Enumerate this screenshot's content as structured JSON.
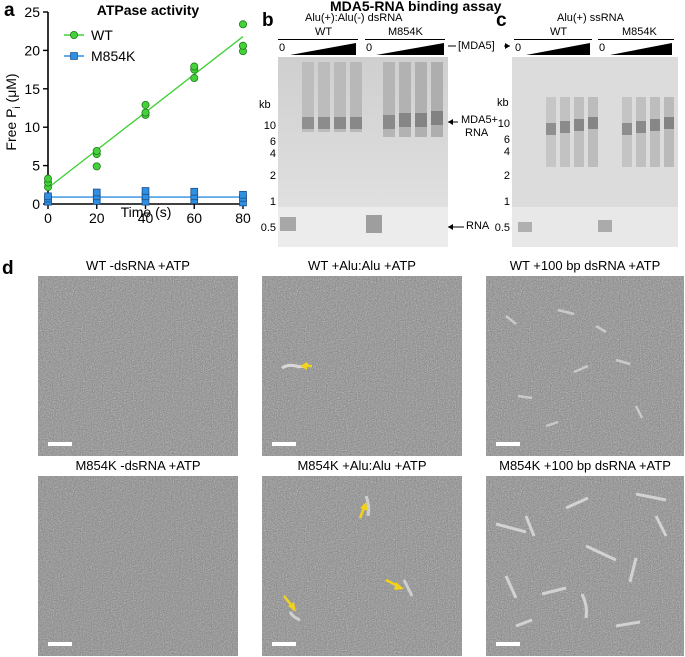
{
  "panels": {
    "a": {
      "letter": "a",
      "chart_data": {
        "type": "scatter",
        "title": "ATPase activity",
        "xlabel": "Time (s)",
        "ylabel": "Free Pi (μM)",
        "ylabel_parts": [
          "Free P",
          "i",
          " (μM)"
        ],
        "xlim": [
          0,
          80
        ],
        "ylim": [
          0,
          25
        ],
        "xticks": [
          0,
          20,
          40,
          60,
          80
        ],
        "yticks": [
          0,
          5,
          10,
          15,
          20,
          25
        ],
        "legend_position": "top-left",
        "series": [
          {
            "name": "WT",
            "color": "#44d13a",
            "marker": "circle",
            "points": [
              [
                0,
                2.2
              ],
              [
                0,
                2.8
              ],
              [
                0,
                3.3
              ],
              [
                20,
                4.9
              ],
              [
                20,
                6.5
              ],
              [
                20,
                6.9
              ],
              [
                40,
                11.6
              ],
              [
                40,
                11.9
              ],
              [
                40,
                12.9
              ],
              [
                60,
                16.4
              ],
              [
                60,
                17.5
              ],
              [
                60,
                17.9
              ],
              [
                80,
                19.9
              ],
              [
                80,
                20.6
              ],
              [
                80,
                23.4
              ]
            ],
            "fit": [
              [
                0,
                2.1
              ],
              [
                80,
                21.8
              ]
            ]
          },
          {
            "name": "M854K",
            "color": "#2f8fe0",
            "marker": "square",
            "points": [
              [
                0,
                0.3
              ],
              [
                0,
                0.7
              ],
              [
                0,
                1.0
              ],
              [
                20,
                0.4
              ],
              [
                20,
                1.0
              ],
              [
                20,
                1.5
              ],
              [
                40,
                0.3
              ],
              [
                40,
                1.0
              ],
              [
                40,
                1.7
              ],
              [
                60,
                0.5
              ],
              [
                60,
                1.0
              ],
              [
                60,
                1.6
              ],
              [
                80,
                0.2
              ],
              [
                80,
                0.8
              ],
              [
                80,
                1.2
              ]
            ],
            "fit": [
              [
                0,
                0.9
              ],
              [
                80,
                0.9
              ]
            ]
          }
        ]
      }
    },
    "b": {
      "letter": "b",
      "assay_title": "MDA5-RNA binding assay",
      "subtitle": "Alu(+):Alu(-) dsRNA",
      "group_labels": [
        "WT",
        "M854K"
      ],
      "zero_label": "0",
      "kb_label": "kb",
      "kb_markers": [
        "10",
        "6",
        "4",
        "2",
        "1",
        "0.5"
      ],
      "right_labels": {
        "mda5": "[MDA5]",
        "complex": "MDA5+\nRNA",
        "complex_line1": "MDA5+",
        "complex_line2": "RNA",
        "rna": "RNA"
      }
    },
    "c": {
      "letter": "c",
      "subtitle": "Alu(+) ssRNA",
      "group_labels": [
        "WT",
        "M854K"
      ],
      "zero_label": "0",
      "kb_label": "kb",
      "kb_markers": [
        "10",
        "6",
        "4",
        "2",
        "1",
        "0.5"
      ]
    },
    "d": {
      "letter": "d",
      "images": [
        {
          "title": "WT -dsRNA +ATP"
        },
        {
          "title": "WT +Alu:Alu +ATP"
        },
        {
          "title": "WT +100 bp dsRNA +ATP"
        },
        {
          "title": "M854K -dsRNA +ATP"
        },
        {
          "title": "M854K +Alu:Alu +ATP"
        },
        {
          "title": "M854K +100 bp dsRNA +ATP"
        }
      ],
      "arrow_color": "#f2d21a"
    }
  }
}
